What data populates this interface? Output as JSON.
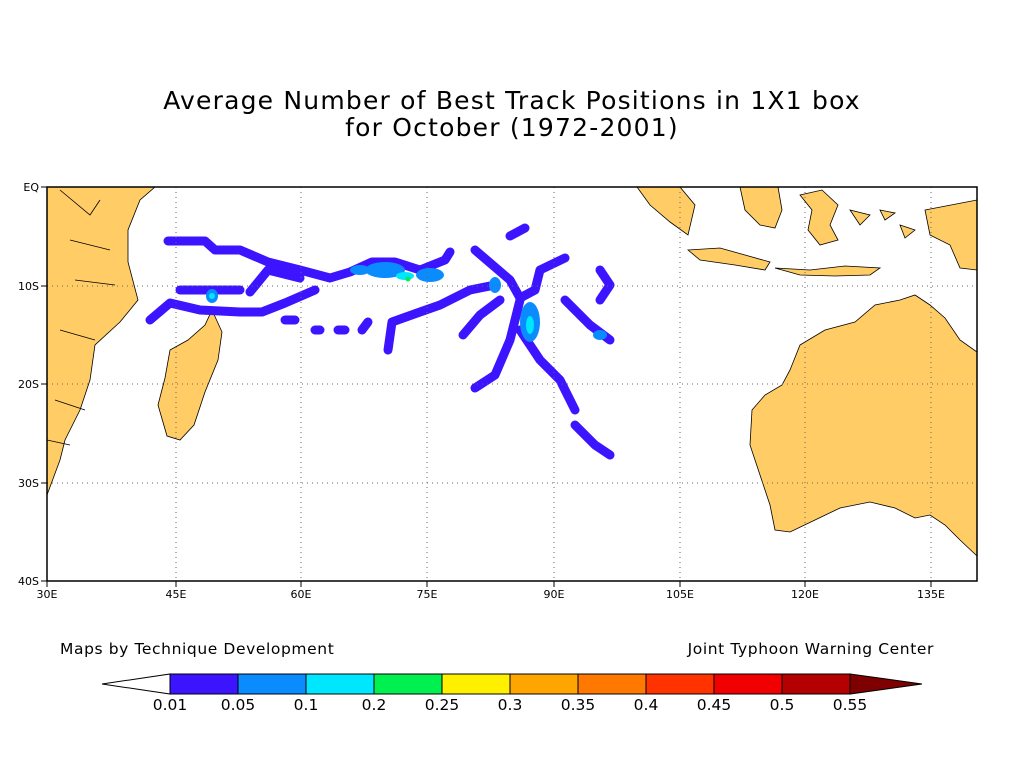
{
  "title": {
    "line1": "Average Number of Best Track Positions in 1X1 box",
    "line2": "for October (1972-2001)"
  },
  "map": {
    "lat_labels": [
      "EQ",
      "10S",
      "20S",
      "30S",
      "40S"
    ],
    "lon_labels": [
      "30E",
      "45E",
      "60E",
      "75E",
      "90E",
      "105E",
      "120E",
      "135E"
    ],
    "land_color": "#ffcc66",
    "grid": true
  },
  "credits": {
    "left": "Maps by Technique Development",
    "right": "Joint Typhoon Warning Center"
  },
  "colorbar": {
    "labels": [
      "0.01",
      "0.05",
      "0.1",
      "0.2",
      "0.25",
      "0.3",
      "0.35",
      "0.4",
      "0.45",
      "0.5",
      "0.55"
    ],
    "colors": [
      "#ffffff",
      "#3c14ff",
      "#0a8cff",
      "#00e6ff",
      "#00f050",
      "#fff000",
      "#ffa500",
      "#ff7800",
      "#ff3200",
      "#f00000",
      "#b40000",
      "#7f0000"
    ]
  }
}
